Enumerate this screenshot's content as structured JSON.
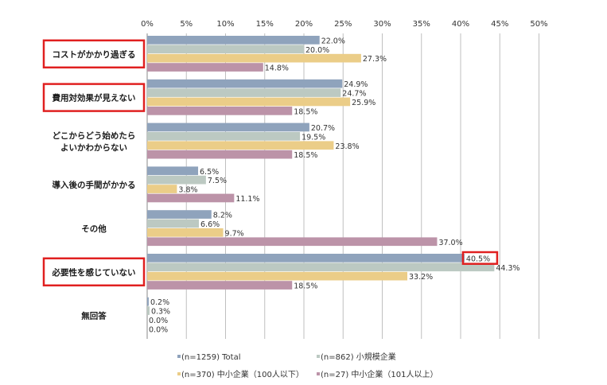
{
  "chart_data": {
    "type": "bar",
    "orientation": "horizontal",
    "xlim": [
      0,
      50
    ],
    "x_ticks": [
      "0%",
      "5%",
      "10%",
      "15%",
      "20%",
      "25%",
      "30%",
      "35%",
      "40%",
      "45%",
      "50%"
    ],
    "grid": true,
    "legend_position": "bottom",
    "categories": [
      {
        "lines": [
          "コストがかかり過ぎる"
        ],
        "highlighted": true
      },
      {
        "lines": [
          "費用対効果が見えない"
        ],
        "highlighted": true
      },
      {
        "lines": [
          "どこからどう始めたら",
          "よいかわからない"
        ],
        "highlighted": false
      },
      {
        "lines": [
          "導入後の手間がかかる"
        ],
        "highlighted": false
      },
      {
        "lines": [
          "その他"
        ],
        "highlighted": false
      },
      {
        "lines": [
          "必要性を感じていない"
        ],
        "highlighted": true
      },
      {
        "lines": [
          "無回答"
        ],
        "highlighted": false
      }
    ],
    "series": [
      {
        "name": "(n=1259) Total",
        "color": "#8fa3bc",
        "values": [
          22.0,
          24.9,
          20.7,
          6.5,
          8.2,
          40.5,
          0.2
        ]
      },
      {
        "name": "(n=862) 小規模企業",
        "color": "#bcc9c2",
        "values": [
          20.0,
          24.7,
          19.5,
          7.5,
          6.6,
          44.3,
          0.3
        ]
      },
      {
        "name": "(n=370) 中小企業（100人以下）",
        "color": "#ebcd88",
        "values": [
          27.3,
          25.9,
          23.8,
          3.8,
          9.7,
          33.2,
          0.0
        ]
      },
      {
        "name": "(n=27) 中小企業（101人以上）",
        "color": "#bc93a8",
        "values": [
          14.8,
          18.5,
          18.5,
          11.1,
          37.0,
          18.5,
          0.0
        ]
      }
    ],
    "value_labels": [
      [
        "22.0%",
        "24.9%",
        "20.7%",
        "6.5%",
        "8.2%",
        "40.5%",
        "0.2%"
      ],
      [
        "20.0%",
        "24.7%",
        "19.5%",
        "7.5%",
        "6.6%",
        "44.3%",
        "0.3%"
      ],
      [
        "27.3%",
        "25.9%",
        "23.8%",
        "3.8%",
        "9.7%",
        "33.2%",
        "0.0%"
      ],
      [
        "14.8%",
        "18.5%",
        "18.5%",
        "11.1%",
        "37.0%",
        "18.5%",
        "0.0%"
      ]
    ],
    "highlighted_value": {
      "series": 0,
      "category": 5
    },
    "highlight_color": "#e02020"
  }
}
